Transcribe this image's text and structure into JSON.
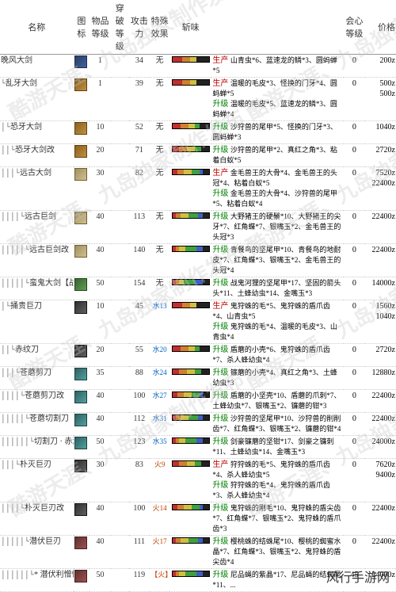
{
  "headers": {
    "name": "名称",
    "icon": "图标",
    "grade": "物品等级",
    "pen": "穿破等级",
    "atk": "攻击力",
    "spec": "特殊效果",
    "sharp": "斩味",
    "aff": "会心等级",
    "price": "价格"
  },
  "watermark": "酷游天涯、九岛独家制作发布",
  "footer": "风行手游网",
  "tags": {
    "produce": "生产",
    "upgrade": "升级"
  },
  "weapons": [
    {
      "name": "晚风大剑",
      "indent": 0,
      "icon": "wi-blue",
      "grade": 1,
      "pen": "",
      "atk": 34,
      "spec": "无",
      "sharp": [
        12,
        10,
        8,
        0,
        0,
        0
      ],
      "tagA": "produce",
      "tagB": "",
      "mat": "山青虫*6、蓝速龙的鳞*3、圆蚂蝉*5",
      "aff": 0,
      "price": "200z"
    },
    {
      "name": "乱牙大剑",
      "indent": 1,
      "icon": "wi-gold",
      "grade": 1,
      "pen": "",
      "atk": 39,
      "spec": "无",
      "sharp": [
        12,
        10,
        8,
        0,
        0,
        0
      ],
      "tagA": "produce",
      "tagB": "upgrade",
      "mat": "温暖的毛皮*3、怪换的门牙*4、圆蚂蝉*5\n温暖的毛皮*5、蓝速龙的鳞*3、圆蚂蝉*4",
      "aff": 0,
      "price": "500z\n500z"
    },
    {
      "name": "恐牙大剑",
      "indent": 2,
      "icon": "wi-gold",
      "grade": 10,
      "pen": "",
      "atk": 52,
      "spec": "无",
      "sharp": [
        10,
        10,
        8,
        6,
        0,
        0
      ],
      "tagA": "upgrade",
      "tagB": "",
      "mat": "沙狩兽的尾甲*5、怪换的门牙*3、圆蚂蝉*3",
      "aff": 0,
      "price": "1040z"
    },
    {
      "name": "恐牙大剑改",
      "indent": 3,
      "icon": "wi-gold",
      "grade": 20,
      "pen": "",
      "atk": 71,
      "spec": "无",
      "sharp": [
        8,
        10,
        10,
        8,
        0,
        0
      ],
      "tagA": "upgrade",
      "tagB": "",
      "mat": "沙狩兽的尾甲*2、真红之角*3、粘着白蚁*5",
      "aff": 0,
      "price": "2720z"
    },
    {
      "name": "远古大剑",
      "indent": 4,
      "icon": "wi-bone",
      "grade": 30,
      "pen": "",
      "atk": 82,
      "spec": "无",
      "sharp": [
        6,
        8,
        10,
        10,
        4,
        0
      ],
      "tagA": "produce",
      "tagB": "upgrade",
      "mat": "金毛兽王的大骨*4、金毛兽王的头冠*4、粘着白蚁*5\n金毛兽王的大骨*4、沙狩兽的尾甲*5、粘着白蚁*4",
      "aff": 0,
      "price": "7520z\n22400z"
    },
    {
      "name": "远古巨剑",
      "indent": 5,
      "icon": "wi-bone",
      "grade": 40,
      "pen": "",
      "atk": 113,
      "spec": "无",
      "sharp": [
        4,
        6,
        10,
        12,
        6,
        0
      ],
      "tagA": "upgrade",
      "tagB": "",
      "mat": "大野猪王的硬鬃*10、大野猪王的尖牙*7、红角蝶*7、银嘴玉*2、金毛兽王的头冠*3",
      "aff": 0,
      "price": "22400z"
    },
    {
      "name": "远古巨剑改",
      "indent": 6,
      "icon": "wi-bone",
      "grade": 40,
      "pen": "",
      "atk": 140,
      "spec": "无",
      "sharp": [
        4,
        4,
        8,
        14,
        8,
        0
      ],
      "tagA": "upgrade",
      "tagB": "",
      "mat": "青餐鸟的坚尾甲*10、青餐鸟的地耐皮*7、红角蝶*3、银嘴玉*2、金毛兽王的头冠*4",
      "aff": 0,
      "price": "22400z"
    },
    {
      "name": "蛮鬼大剑【战棰】",
      "indent": 6,
      "icon": "wi-green",
      "grade": 50,
      "pen": "",
      "atk": 154,
      "spec": "无",
      "sharp": [
        4,
        4,
        6,
        14,
        10,
        0
      ],
      "tagA": "upgrade",
      "tagB": "",
      "mat": "战鬼河狸的坚尾甲*17、坚固的箭头头*11、土蜂幼虫*14、金嘴玉*3",
      "aff": 0,
      "price": "14000z"
    },
    {
      "name": "捅贵巨刀",
      "indent": 2,
      "icon": "wi-dark",
      "grade": 10,
      "pen": "",
      "atk": 45,
      "spec": "",
      "spectxt": "水13",
      "specclass": "spec-water",
      "sharp": [
        12,
        10,
        8,
        0,
        0,
        0
      ],
      "tagA": "produce",
      "tagB": "upgrade",
      "mat": "鬼狩蛛的毛*5、鬼狩蛛的盾爪齿*4、山青虫*5\n鬼狩蛛的毛*4、温暖的毛皮*3、山青虫*4",
      "aff": 0,
      "price": "1560z\n1040z"
    },
    {
      "name": "赤纹刀",
      "indent": 3,
      "icon": "wi-dark",
      "grade": 20,
      "pen": "",
      "atk": 55,
      "spec": "",
      "spectxt": "水20",
      "specclass": "spec-water",
      "sharp": [
        10,
        10,
        8,
        6,
        0,
        0
      ],
      "tagA": "upgrade",
      "tagB": "",
      "mat": "盾蘑的小壳*6、鬼狩蛛的盾爪齿*7、杀人蜂幼虫*4",
      "aff": 0,
      "price": "2720z"
    },
    {
      "name": "苍蘑剪刀",
      "indent": 4,
      "icon": "wi-teal",
      "grade": 35,
      "pen": "",
      "atk": 88,
      "spec": "",
      "spectxt": "水24",
      "specclass": "spec-water",
      "sharp": [
        8,
        10,
        10,
        8,
        0,
        0
      ],
      "tagA": "upgrade",
      "tagB": "",
      "mat": "镰蘑的小壳*4、真红之角*3、土蜂幼虫*3",
      "aff": 0,
      "price": "12880z"
    },
    {
      "name": "苍蘑剪刀改",
      "indent": 5,
      "icon": "wi-teal",
      "grade": 40,
      "pen": "",
      "atk": 100,
      "spec": "",
      "spectxt": "水27",
      "specclass": "spec-water",
      "sharp": [
        6,
        8,
        10,
        10,
        4,
        0
      ],
      "tagA": "upgrade",
      "tagB": "",
      "mat": "盾蘑的小坚壳*10、盾蘑的爪刺*7、土蜂幼虫*7、银嘴玉*2、镰蘑的钳*3",
      "aff": 0,
      "price": "22400z"
    },
    {
      "name": "苍蘑切割刀",
      "indent": 6,
      "icon": "wi-teal",
      "grade": 40,
      "pen": "",
      "atk": 112,
      "spec": "",
      "spectxt": "水31",
      "specclass": "spec-water",
      "sharp": [
        4,
        6,
        10,
        12,
        6,
        0
      ],
      "tagA": "upgrade",
      "tagB": "",
      "mat": "沙狩兽的坚尾甲*10、沙狩兽的削削齿*7、红角蝶*3、银嘴玉*2、镰蘑的钳*4",
      "aff": 0,
      "price": "22400z"
    },
    {
      "name": "切割刀 · 赤潮",
      "indent": 7,
      "icon": "wi-teal",
      "grade": 50,
      "pen": "",
      "atk": 123,
      "spec": "",
      "spectxt": "水35",
      "specclass": "spec-water",
      "sharp": [
        4,
        4,
        8,
        14,
        8,
        0
      ],
      "tagA": "upgrade",
      "tagB": "",
      "mat": "剑豪镰蘑的坚钳*17、剑豪之镰刺*11、土蜂幼虫*14、金嘴玉*3",
      "aff": 0,
      "price": "24000z"
    },
    {
      "name": "朴灭巨刃",
      "indent": 4,
      "icon": "wi-dark",
      "grade": 30,
      "pen": "",
      "atk": 83,
      "spec": "",
      "spectxt": "火9",
      "specclass": "spec-fire",
      "sharp": [
        8,
        10,
        10,
        8,
        0,
        0
      ],
      "tagA": "produce",
      "tagB": "upgrade",
      "mat": "狩狩蛛的毛*5、鬼狩蛛的盾爪齿*4、杀人蜂幼虫*5\n狩狩蛛的毛*4、鬼狩蛛的盾爪齿*3、杀人蜂幼虫*4",
      "aff": 0,
      "price": "7620z\n9400z"
    },
    {
      "name": "朴灭巨刃改",
      "indent": 5,
      "icon": "wi-dark",
      "grade": 40,
      "pen": "",
      "atk": 100,
      "spec": "",
      "spectxt": "火14",
      "specclass": "spec-fire",
      "sharp": [
        6,
        8,
        10,
        10,
        4,
        0
      ],
      "tagA": "upgrade",
      "tagB": "",
      "mat": "鬼狩蛛的刚毛*10、鬼狩蛛的盾尖齿*7、红角蝶*7、银嘴玉*2、鬼狩蛛的盾爪齿*3",
      "aff": 0,
      "price": "22400z"
    },
    {
      "name": "潜伏巨刃",
      "indent": 6,
      "icon": "wi-red",
      "grade": 40,
      "pen": "",
      "atk": 111,
      "spec": "",
      "spectxt": "火17",
      "specclass": "spec-fire",
      "sharp": [
        4,
        6,
        10,
        12,
        6,
        0
      ],
      "tagA": "upgrade",
      "tagB": "",
      "mat": "樱桃蛛的结蛛尾*10、樱桃的蜘蜜水晶*7、红角蝶*3、银嘴玉*2、鬼狩蛛的盾尖齿*4",
      "aff": 0,
      "price": "22400z"
    },
    {
      "name": "* 潜伏利憎忧急德",
      "indent": 7,
      "icon": "wi-red",
      "grade": 50,
      "pen": "",
      "atk": 119,
      "spec": "",
      "spectxt": "【火】",
      "specclass": "spec-fire",
      "sharp": [
        4,
        4,
        8,
        14,
        8,
        0
      ],
      "tagA": "upgrade",
      "tagB": "",
      "mat": "尼品蝇的紫晶*17、尼品蝇的结蜘尾*11、...",
      "aff": 45,
      "price": "24000z"
    }
  ]
}
